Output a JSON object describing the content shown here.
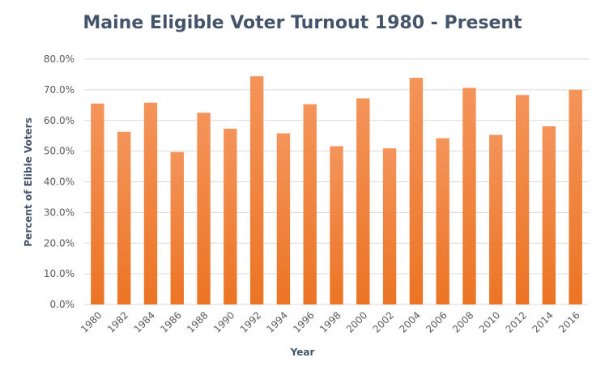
{
  "chart_data": {
    "type": "bar",
    "title": "Maine Eligible Voter Turnout 1980 - Present",
    "xlabel": "Year",
    "ylabel": "Percent of Elible Voters",
    "ylim": [
      0,
      80
    ],
    "yticks": [
      "0.0%",
      "10.0%",
      "20.0%",
      "30.0%",
      "40.0%",
      "50.0%",
      "60.0%",
      "70.0%",
      "80.0%"
    ],
    "grid": true,
    "legend": "none",
    "colors": {
      "bar_top": "#f4945a",
      "bar_bottom": "#ec7424",
      "grid": "#d9d9d9",
      "text": "#44546a"
    },
    "categories": [
      "1980",
      "1982",
      "1984",
      "1986",
      "1988",
      "1990",
      "1992",
      "1994",
      "1996",
      "1998",
      "2000",
      "2002",
      "2004",
      "2006",
      "2008",
      "2010",
      "2012",
      "2014",
      "2016"
    ],
    "values": [
      65.5,
      56.3,
      65.8,
      49.7,
      62.5,
      57.3,
      74.4,
      55.8,
      65.3,
      51.6,
      67.2,
      50.9,
      73.9,
      54.2,
      70.6,
      55.3,
      68.3,
      58.1,
      70.0
    ]
  }
}
